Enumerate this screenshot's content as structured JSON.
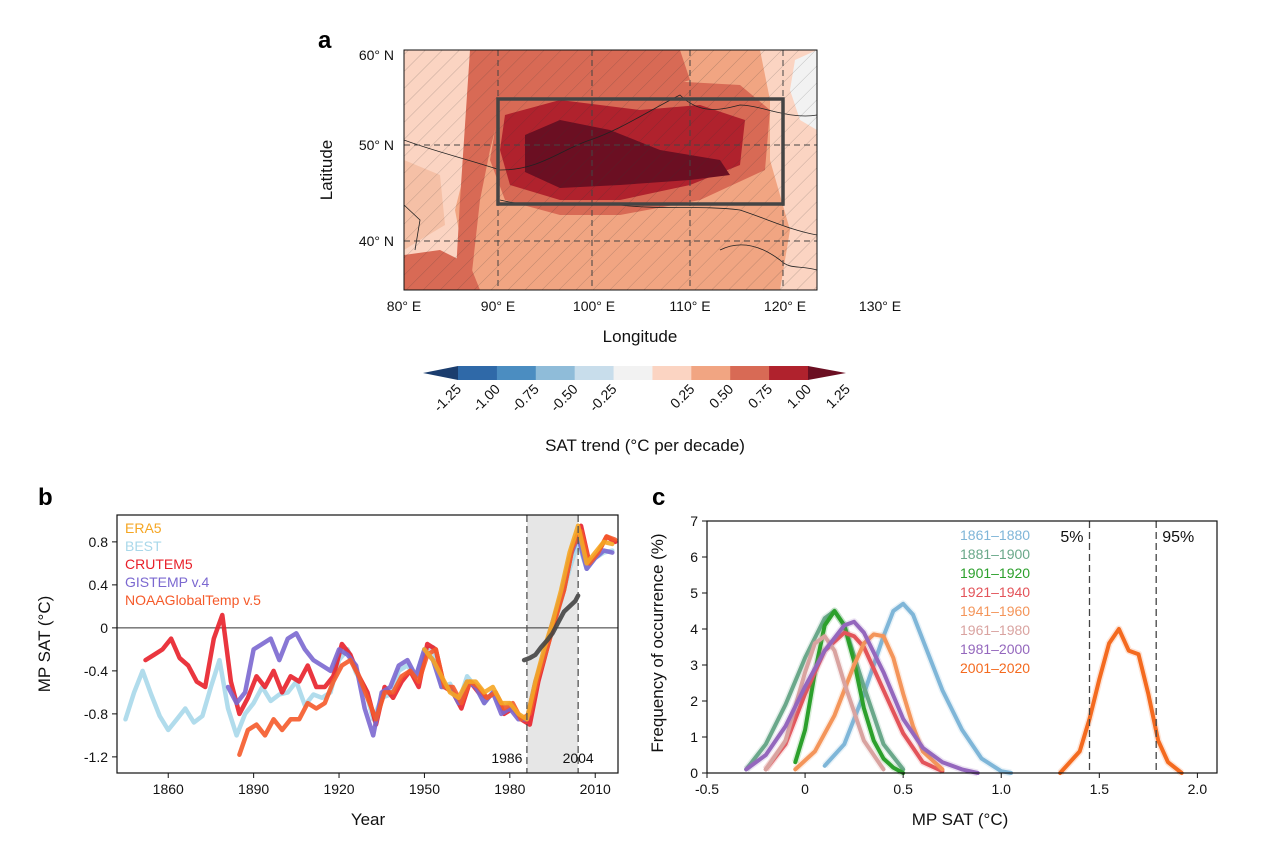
{
  "panels": {
    "a": {
      "label": "a",
      "xlabel": "Longitude",
      "ylabel": "Latitude",
      "xticks": [
        "80° E",
        "90° E",
        "100° E",
        "110° E",
        "120° E",
        "130° E"
      ],
      "yticks": [
        "60° N",
        "50° N",
        "40° N"
      ],
      "colorbar": {
        "label": "SAT trend (°C per decade)",
        "ticks": [
          "-1.25",
          "-1.00",
          "-0.75",
          "-0.50",
          "-0.25",
          "0.25",
          "0.50",
          "0.75",
          "1.00",
          "1.25"
        ],
        "colors": [
          "#1b3d6e",
          "#2f69a8",
          "#4b8dc1",
          "#8fbcd9",
          "#c8ddeb",
          "#f2f2f2",
          "#fbd4c2",
          "#f1a582",
          "#d86a55",
          "#b0222d",
          "#6b0f22"
        ]
      }
    },
    "b": {
      "label": "b",
      "xlabel": "Year",
      "ylabel": "MP SAT (°C)",
      "xticks": [
        "1860",
        "1890",
        "1920",
        "1950",
        "1980",
        "2010"
      ],
      "yticks": [
        "0.8",
        "0.4",
        "0",
        "-0.4",
        "-0.8",
        "-1.2"
      ],
      "annotations": [
        "1986",
        "2004"
      ]
    },
    "c": {
      "label": "c",
      "xlabel": "MP SAT (°C)",
      "ylabel": "Frequency of occurrence (%)",
      "xticks": [
        "-0.5",
        "0",
        "0.5",
        "1.0",
        "1.5",
        "2.0"
      ],
      "yticks": [
        "0",
        "1",
        "2",
        "3",
        "4",
        "5",
        "6",
        "7"
      ],
      "percentiles": [
        "5%",
        "95%"
      ]
    }
  },
  "chart_data": [
    {
      "type": "heatmap",
      "panel": "a",
      "xlabel": "Longitude",
      "ylabel": "Latitude",
      "xlim": [
        80,
        130
      ],
      "ylim": [
        35,
        60
      ],
      "box": {
        "lon": [
          90,
          120
        ],
        "lat": [
          44,
          55
        ]
      },
      "colorbar_label": "SAT trend (°C per decade)",
      "levels": [
        -1.25,
        -1.0,
        -0.75,
        -0.5,
        -0.25,
        0.25,
        0.5,
        0.75,
        1.0,
        1.25
      ]
    },
    {
      "type": "line",
      "panel": "b",
      "xlabel": "Year",
      "ylabel": "MP SAT (°C)",
      "xlim": [
        1842,
        2018
      ],
      "ylim": [
        -1.35,
        1.05
      ],
      "shaded_period": [
        1986,
        2004
      ],
      "series": [
        {
          "name": "BEST",
          "color": "#a9d8ea",
          "x": [
            1845,
            1848,
            1851,
            1854,
            1857,
            1860,
            1863,
            1866,
            1869,
            1872,
            1875,
            1878,
            1881,
            1884,
            1887,
            1890,
            1893,
            1896,
            1899,
            1902,
            1905,
            1908,
            1911,
            1914,
            1917,
            1920,
            1923,
            1926,
            1929,
            1932,
            1935,
            1938,
            1941,
            1944,
            1947,
            1950,
            1953,
            1956,
            1959,
            1962,
            1965,
            1968,
            1971,
            1974,
            1977,
            1980,
            1983,
            1986,
            1989,
            1992,
            1995,
            1998,
            2001,
            2004,
            2007,
            2010,
            2013,
            2016
          ],
          "y": [
            -0.85,
            -0.6,
            -0.4,
            -0.62,
            -0.82,
            -0.95,
            -0.85,
            -0.75,
            -0.88,
            -0.82,
            -0.55,
            -0.3,
            -0.75,
            -1.0,
            -0.8,
            -0.7,
            -0.55,
            -0.68,
            -0.62,
            -0.6,
            -0.5,
            -0.72,
            -0.62,
            -0.65,
            -0.6,
            -0.3,
            -0.2,
            -0.42,
            -0.55,
            -0.85,
            -0.65,
            -0.62,
            -0.4,
            -0.35,
            -0.45,
            -0.2,
            -0.18,
            -0.55,
            -0.52,
            -0.7,
            -0.45,
            -0.55,
            -0.7,
            -0.6,
            -0.75,
            -0.7,
            -0.82,
            -0.85,
            -0.55,
            -0.3,
            0.0,
            0.25,
            0.55,
            0.8,
            0.55,
            0.65,
            0.7,
            0.72
          ]
        },
        {
          "name": "CRUTEM5",
          "color": "#e8202a",
          "x": [
            1852,
            1855,
            1858,
            1861,
            1864,
            1867,
            1870,
            1873,
            1876,
            1879,
            1882,
            1885,
            1888,
            1891,
            1894,
            1897,
            1900,
            1903,
            1906,
            1909,
            1912,
            1915,
            1918,
            1921,
            1924,
            1927,
            1930,
            1933,
            1936,
            1939,
            1942,
            1945,
            1948,
            1951,
            1954,
            1957,
            1960,
            1963,
            1966,
            1969,
            1972,
            1975,
            1978,
            1981,
            1984,
            1987,
            1990,
            1993,
            1996,
            1999,
            2002,
            2005,
            2008,
            2011,
            2014,
            2017
          ],
          "y": [
            -0.3,
            -0.25,
            -0.2,
            -0.1,
            -0.28,
            -0.35,
            -0.5,
            -0.55,
            -0.1,
            0.12,
            -0.5,
            -0.8,
            -0.65,
            -0.45,
            -0.55,
            -0.4,
            -0.6,
            -0.45,
            -0.5,
            -0.35,
            -0.55,
            -0.55,
            -0.45,
            -0.15,
            -0.25,
            -0.45,
            -0.6,
            -0.9,
            -0.55,
            -0.65,
            -0.5,
            -0.4,
            -0.55,
            -0.15,
            -0.2,
            -0.55,
            -0.6,
            -0.75,
            -0.5,
            -0.6,
            -0.65,
            -0.6,
            -0.8,
            -0.75,
            -0.85,
            -0.9,
            -0.5,
            -0.2,
            0.1,
            0.35,
            0.75,
            0.95,
            0.6,
            0.7,
            0.85,
            0.8
          ]
        },
        {
          "name": "GISTEMP v.4",
          "color": "#7b68d0",
          "x": [
            1881,
            1884,
            1887,
            1890,
            1893,
            1896,
            1899,
            1902,
            1905,
            1908,
            1911,
            1914,
            1917,
            1920,
            1923,
            1926,
            1929,
            1932,
            1935,
            1938,
            1941,
            1944,
            1947,
            1950,
            1953,
            1956,
            1959,
            1962,
            1965,
            1968,
            1971,
            1974,
            1977,
            1980,
            1983,
            1986,
            1989,
            1992,
            1995,
            1998,
            2001,
            2004,
            2007,
            2010,
            2013,
            2016
          ],
          "y": [
            -0.55,
            -0.7,
            -0.6,
            -0.2,
            -0.15,
            -0.1,
            -0.3,
            -0.1,
            -0.05,
            -0.2,
            -0.3,
            -0.35,
            -0.4,
            -0.2,
            -0.25,
            -0.35,
            -0.75,
            -1.0,
            -0.6,
            -0.55,
            -0.35,
            -0.3,
            -0.45,
            -0.2,
            -0.3,
            -0.55,
            -0.55,
            -0.7,
            -0.5,
            -0.55,
            -0.7,
            -0.6,
            -0.8,
            -0.75,
            -0.85,
            -0.85,
            -0.5,
            -0.25,
            0.05,
            0.3,
            0.65,
            0.85,
            0.55,
            0.65,
            0.72,
            0.7
          ]
        },
        {
          "name": "NOAAGlobalTemp v.5",
          "color": "#f55a2a",
          "x": [
            1885,
            1888,
            1891,
            1894,
            1897,
            1900,
            1903,
            1906,
            1909,
            1912,
            1915,
            1918,
            1921,
            1924,
            1927,
            1930,
            1933,
            1936,
            1939,
            1942,
            1945,
            1948,
            1951,
            1954,
            1957,
            1960,
            1963,
            1966,
            1969,
            1972,
            1975,
            1978,
            1981,
            1984,
            1987,
            1990,
            1993,
            1996,
            1999,
            2002,
            2005,
            2008,
            2011,
            2014,
            2017
          ],
          "y": [
            -1.18,
            -0.95,
            -0.9,
            -1.0,
            -0.85,
            -0.95,
            -0.85,
            -0.85,
            -0.7,
            -0.75,
            -0.7,
            -0.5,
            -0.35,
            -0.3,
            -0.45,
            -0.65,
            -0.85,
            -0.6,
            -0.6,
            -0.45,
            -0.4,
            -0.5,
            -0.25,
            -0.2,
            -0.55,
            -0.55,
            -0.7,
            -0.5,
            -0.55,
            -0.65,
            -0.6,
            -0.75,
            -0.7,
            -0.85,
            -0.8,
            -0.45,
            -0.2,
            0.08,
            0.35,
            0.75,
            0.9,
            0.6,
            0.7,
            0.85,
            0.82
          ]
        },
        {
          "name": "ERA5",
          "color": "#f5a623",
          "x": [
            1950,
            1953,
            1956,
            1959,
            1962,
            1965,
            1968,
            1971,
            1974,
            1977,
            1980,
            1983,
            1986,
            1989,
            1992,
            1995,
            1998,
            2001,
            2004,
            2007,
            2010,
            2013,
            2016
          ],
          "y": [
            -0.2,
            -0.3,
            -0.45,
            -0.6,
            -0.65,
            -0.5,
            -0.5,
            -0.6,
            -0.55,
            -0.7,
            -0.7,
            -0.8,
            -0.85,
            -0.5,
            -0.2,
            0.05,
            0.35,
            0.7,
            0.95,
            0.6,
            0.7,
            0.8,
            0.78
          ]
        },
        {
          "name": "",
          "color": "#444444",
          "x": [
            1985,
            1987,
            1989,
            1991,
            1993,
            1995,
            1997,
            1999,
            2001,
            2003,
            2004
          ],
          "y": [
            -0.3,
            -0.28,
            -0.25,
            -0.18,
            -0.12,
            -0.05,
            0.05,
            0.15,
            0.2,
            0.25,
            0.3
          ]
        }
      ]
    },
    {
      "type": "line",
      "panel": "c",
      "xlabel": "MP SAT (°C)",
      "ylabel": "Frequency of occurrence (%)",
      "xlim": [
        -0.5,
        2.1
      ],
      "ylim": [
        0,
        7
      ],
      "vlines": [
        {
          "x": 1.45,
          "label": "5%"
        },
        {
          "x": 1.79,
          "label": "95%"
        }
      ],
      "series": [
        {
          "name": "1861–1880",
          "color": "#7fb6d8",
          "x": [
            0.1,
            0.2,
            0.3,
            0.4,
            0.45,
            0.5,
            0.55,
            0.6,
            0.7,
            0.8,
            0.9,
            1.0,
            1.05
          ],
          "y": [
            0.2,
            0.8,
            2.2,
            3.8,
            4.5,
            4.7,
            4.4,
            3.7,
            2.3,
            1.2,
            0.4,
            0.05,
            0.0
          ]
        },
        {
          "name": "1881–1900",
          "color": "#6aa88a",
          "x": [
            -0.3,
            -0.2,
            -0.1,
            0.0,
            0.1,
            0.15,
            0.2,
            0.3,
            0.4,
            0.5
          ],
          "y": [
            0.1,
            0.8,
            1.9,
            3.2,
            4.3,
            4.5,
            4.1,
            2.4,
            0.8,
            0.1
          ]
        },
        {
          "name": "1901–1920",
          "color": "#2ca02c",
          "x": [
            -0.05,
            0.0,
            0.05,
            0.1,
            0.15,
            0.2,
            0.25,
            0.3,
            0.35,
            0.4,
            0.45,
            0.5
          ],
          "y": [
            0.3,
            1.2,
            2.8,
            4.1,
            4.5,
            4.1,
            3.1,
            1.8,
            0.9,
            0.4,
            0.15,
            0.0
          ]
        },
        {
          "name": "1921–1940",
          "color": "#e3545a",
          "x": [
            -0.2,
            -0.1,
            0.0,
            0.1,
            0.2,
            0.25,
            0.3,
            0.4,
            0.5,
            0.6,
            0.7
          ],
          "y": [
            0.1,
            0.8,
            2.2,
            3.4,
            3.9,
            3.8,
            3.5,
            2.3,
            1.1,
            0.3,
            0.05
          ]
        },
        {
          "name": "1941–1960",
          "color": "#f4955a",
          "x": [
            -0.05,
            0.05,
            0.15,
            0.25,
            0.3,
            0.35,
            0.4,
            0.45,
            0.5,
            0.55,
            0.6,
            0.7
          ],
          "y": [
            0.1,
            0.6,
            1.6,
            3.0,
            3.6,
            3.85,
            3.8,
            3.2,
            2.2,
            1.3,
            0.6,
            0.1
          ]
        },
        {
          "name": "1961–1980",
          "color": "#d9a3a0",
          "x": [
            -0.2,
            -0.1,
            0.0,
            0.05,
            0.1,
            0.15,
            0.2,
            0.3,
            0.4
          ],
          "y": [
            0.1,
            0.9,
            2.8,
            3.6,
            3.8,
            3.4,
            2.5,
            0.9,
            0.1
          ]
        },
        {
          "name": "1981–2000",
          "color": "#9467bd",
          "x": [
            -0.3,
            -0.2,
            -0.1,
            0.0,
            0.1,
            0.2,
            0.25,
            0.3,
            0.4,
            0.5,
            0.6,
            0.7,
            0.8,
            0.88
          ],
          "y": [
            0.1,
            0.5,
            1.3,
            2.4,
            3.4,
            4.1,
            4.2,
            3.9,
            2.8,
            1.5,
            0.7,
            0.3,
            0.1,
            0.0
          ]
        },
        {
          "name": "2001–2020",
          "color": "#f46a1f",
          "x": [
            1.3,
            1.4,
            1.45,
            1.5,
            1.55,
            1.6,
            1.65,
            1.7,
            1.75,
            1.8,
            1.85,
            1.92
          ],
          "y": [
            0.0,
            0.6,
            1.5,
            2.6,
            3.6,
            4.0,
            3.4,
            3.3,
            2.2,
            0.9,
            0.3,
            0.0
          ]
        }
      ]
    }
  ]
}
